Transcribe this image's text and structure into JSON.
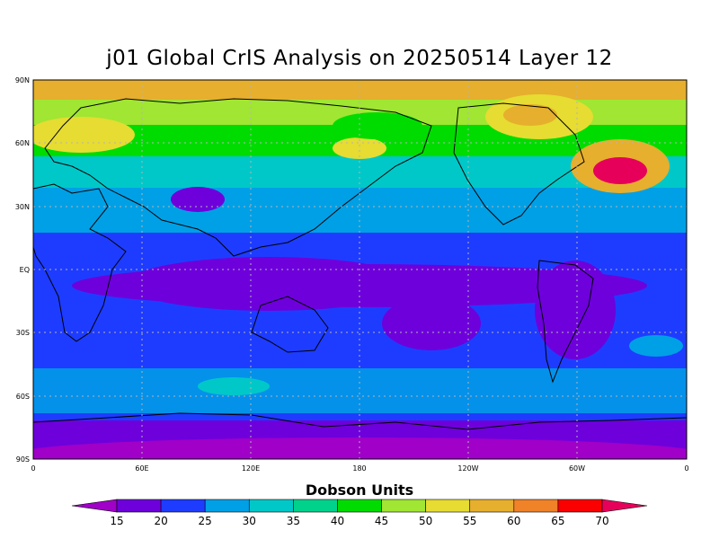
{
  "title": "j01 Global CrIS Analysis on 20250514 Layer 12",
  "map": {
    "lat_labels": [
      "90N",
      "60N",
      "30N",
      "EQ",
      "30S",
      "60S",
      "90S"
    ],
    "lon_labels": [
      "0",
      "60E",
      "120E",
      "180",
      "120W",
      "60W",
      "0"
    ]
  },
  "colorbar": {
    "title": "Dobson Units",
    "ticks": [
      "15",
      "20",
      "25",
      "30",
      "35",
      "40",
      "45",
      "50",
      "55",
      "60",
      "65",
      "70"
    ],
    "colors": [
      "#a000c8",
      "#6e00dc",
      "#1e3cff",
      "#00a0e6",
      "#00c8c8",
      "#00d28c",
      "#00dc00",
      "#a0e632",
      "#e6dc32",
      "#e6af2d",
      "#f08228",
      "#fa0000",
      "#e6005a"
    ]
  },
  "colors": {
    "land_outline": "#000000",
    "grid": "#b4b4b4"
  }
}
